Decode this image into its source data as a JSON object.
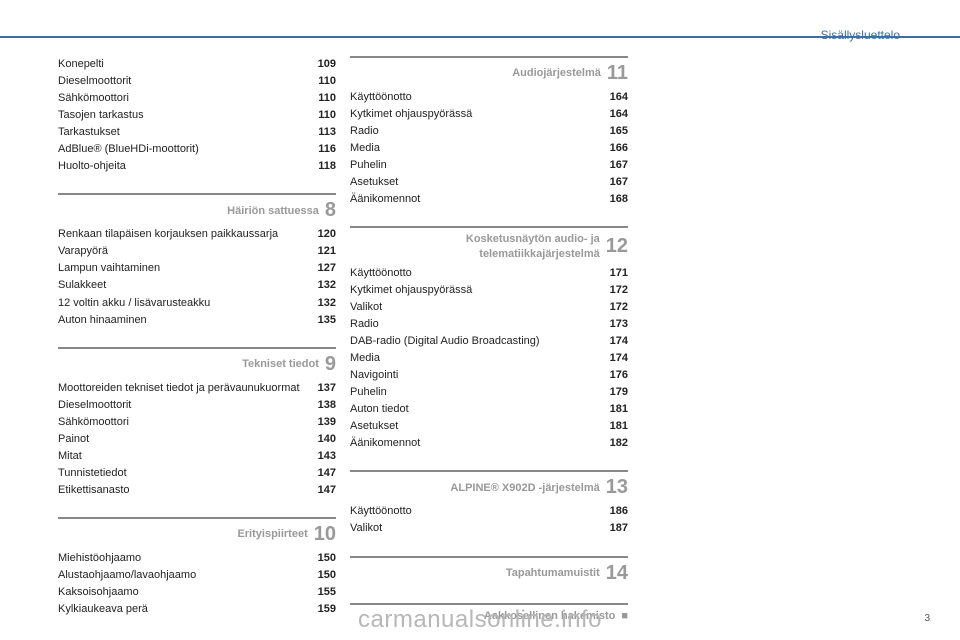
{
  "header_title": "Sisällysluettelo",
  "page_num": "3",
  "watermark": "carmanualsonline.info",
  "columns": [
    {
      "groups": [
        {
          "header": null,
          "items": [
            {
              "label": "Konepelti",
              "page": "109"
            },
            {
              "label": "Dieselmoottorit",
              "page": "110"
            },
            {
              "label": "Sähkömoottori",
              "page": "110"
            },
            {
              "label": "Tasojen tarkastus",
              "page": "110"
            },
            {
              "label": "Tarkastukset",
              "page": "113"
            },
            {
              "label": "AdBlue® (BlueHDi-moottorit)",
              "page": "116"
            },
            {
              "label": "Huolto-ohjeita",
              "page": "118"
            }
          ]
        },
        {
          "header": {
            "title": "Häiriön sattuessa",
            "num": "8"
          },
          "items": [
            {
              "label": "Renkaan tilapäisen korjauksen paikkaussarja",
              "page": "120"
            },
            {
              "label": "Varapyörä",
              "page": "121"
            },
            {
              "label": "Lampun vaihtaminen",
              "page": "127"
            },
            {
              "label": "Sulakkeet",
              "page": "132"
            },
            {
              "label": "12 voltin akku / lisävarusteakku",
              "page": "132"
            },
            {
              "label": "Auton hinaaminen",
              "page": "135"
            }
          ]
        },
        {
          "header": {
            "title": "Tekniset tiedot",
            "num": "9"
          },
          "items": [
            {
              "label": "Moottoreiden tekniset tiedot ja perävaunukuormat",
              "page": "137"
            },
            {
              "label": "Dieselmoottorit",
              "page": "138"
            },
            {
              "label": "Sähkömoottori",
              "page": "139"
            },
            {
              "label": "Painot",
              "page": "140"
            },
            {
              "label": "Mitat",
              "page": "143"
            },
            {
              "label": "Tunnistetiedot",
              "page": "147"
            },
            {
              "label": "Etikettisanasto",
              "page": "147"
            }
          ]
        },
        {
          "header": {
            "title": "Erityispiirteet",
            "num": "10"
          },
          "items": [
            {
              "label": "Miehistöohjaamo",
              "page": "150"
            },
            {
              "label": "Alustaohjaamo/lavaohjaamo",
              "page": "150"
            },
            {
              "label": "Kaksoisohjaamo",
              "page": "155"
            },
            {
              "label": "Kylkiaukeava perä",
              "page": "159"
            }
          ]
        }
      ]
    },
    {
      "groups": [
        {
          "header": {
            "title": "Audiojärjestelmä",
            "num": "11",
            "first": true
          },
          "items": [
            {
              "label": "Käyttöönotto",
              "page": "164"
            },
            {
              "label": "Kytkimet ohjauspyörässä",
              "page": "164"
            },
            {
              "label": "Radio",
              "page": "165"
            },
            {
              "label": "Media",
              "page": "166"
            },
            {
              "label": "Puhelin",
              "page": "167"
            },
            {
              "label": "Asetukset",
              "page": "167"
            },
            {
              "label": "Äänikomennot",
              "page": "168"
            }
          ]
        },
        {
          "header": {
            "title": "Kosketusnäytön audio- ja telematiikkajärjestelmä",
            "num": "12"
          },
          "items": [
            {
              "label": "Käyttöönotto",
              "page": "171"
            },
            {
              "label": "Kytkimet ohjauspyörässä",
              "page": "172"
            },
            {
              "label": "Valikot",
              "page": "172"
            },
            {
              "label": "Radio",
              "page": "173"
            },
            {
              "label": "DAB-radio (Digital Audio Broadcasting)",
              "page": "174"
            },
            {
              "label": "Media",
              "page": "174"
            },
            {
              "label": "Navigointi",
              "page": "176"
            },
            {
              "label": "Puhelin",
              "page": "179"
            },
            {
              "label": "Auton tiedot",
              "page": "181"
            },
            {
              "label": "Asetukset",
              "page": "181"
            },
            {
              "label": "Äänikomennot",
              "page": "182"
            }
          ]
        },
        {
          "header": {
            "title": "ALPINE® X902D -järjestelmä",
            "num": "13"
          },
          "items": [
            {
              "label": "Käyttöönotto",
              "page": "186"
            },
            {
              "label": "Valikot",
              "page": "187"
            }
          ]
        },
        {
          "header": {
            "title": "Tapahtumamuistit",
            "num": "14"
          },
          "items": []
        },
        {
          "header": {
            "title": "Aakkosellinen hakemisto",
            "num": "■",
            "square": true
          },
          "items": []
        }
      ]
    }
  ]
}
